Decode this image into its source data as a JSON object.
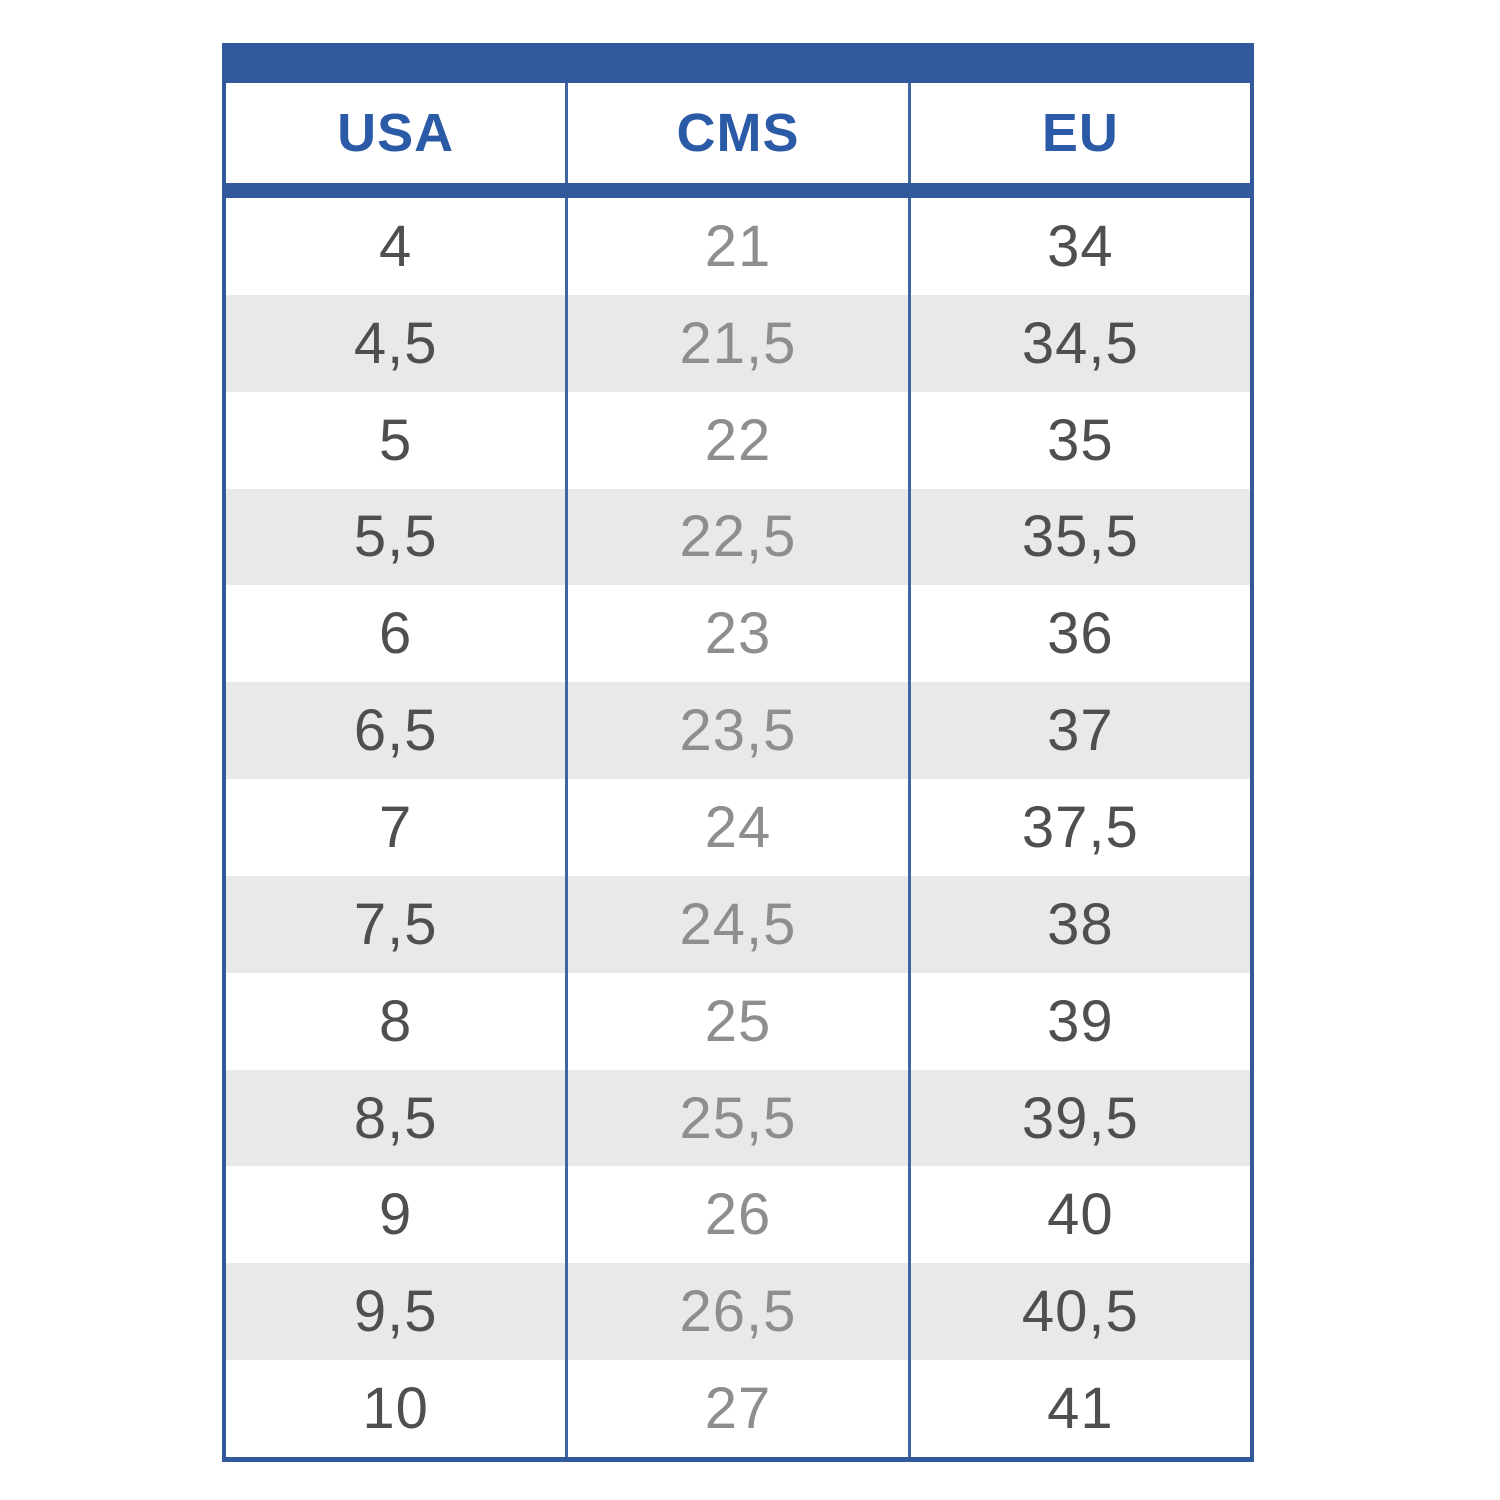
{
  "colors": {
    "accent_blue": "#32599C",
    "divider_blue": "#41669F",
    "header_text_blue": "#2B5AA6",
    "stripe_gray": "#E9E9E9",
    "primary_text": "#4F4F4F",
    "secondary_text": "#8E8E8E",
    "page_bg": "#FFFFFF"
  },
  "chart_data": {
    "type": "table",
    "columns": [
      "USA",
      "CMS",
      "EU"
    ],
    "rows": [
      [
        "4",
        "21",
        "34"
      ],
      [
        "4,5",
        "21,5",
        "34,5"
      ],
      [
        "5",
        "22",
        "35"
      ],
      [
        "5,5",
        "22,5",
        "35,5"
      ],
      [
        "6",
        "23",
        "36"
      ],
      [
        "6,5",
        "23,5",
        "37"
      ],
      [
        "7",
        "24",
        "37,5"
      ],
      [
        "7,5",
        "24,5",
        "38"
      ],
      [
        "8",
        "25",
        "39"
      ],
      [
        "8,5",
        "25,5",
        "39,5"
      ],
      [
        "9",
        "26",
        "40"
      ],
      [
        "9,5",
        "26,5",
        "40,5"
      ],
      [
        "10",
        "27",
        "41"
      ]
    ],
    "layout": {
      "stripe_pattern": "odd-rows-white-even-rows-gray",
      "grid": "vertical-dividers-only",
      "header_position": "top"
    }
  }
}
